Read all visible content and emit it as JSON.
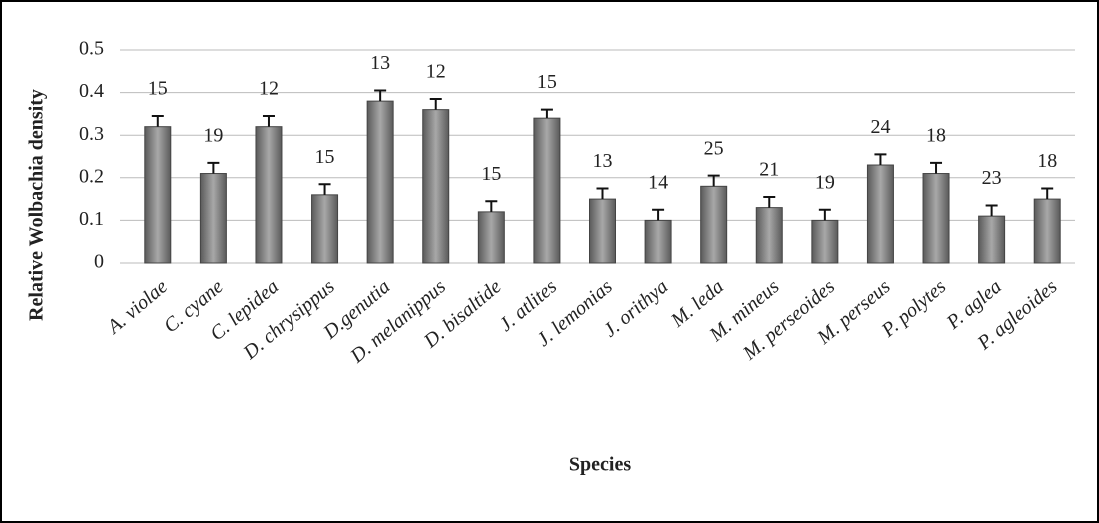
{
  "chart_data": {
    "type": "bar",
    "xlabel": "Species",
    "ylabel": "Relative Wolbachia density",
    "categories": [
      "A. violae",
      "C. cyane",
      "C. lepidea",
      "D. chrysippus",
      "D.genutia",
      "D. melanippus",
      "D. bisaltide",
      "J. atlites",
      "J. lemonias",
      "J. orithya",
      "M. leda",
      "M. mineus",
      "M. perseoides",
      "M. perseus",
      "P. polytes",
      "P. aglea",
      "P. agleoides"
    ],
    "values": [
      0.32,
      0.21,
      0.32,
      0.16,
      0.38,
      0.36,
      0.12,
      0.34,
      0.15,
      0.1,
      0.18,
      0.13,
      0.1,
      0.23,
      0.21,
      0.11,
      0.15
    ],
    "errors": [
      0.025,
      0.025,
      0.025,
      0.025,
      0.025,
      0.025,
      0.025,
      0.02,
      0.025,
      0.025,
      0.025,
      0.025,
      0.025,
      0.025,
      0.025,
      0.025,
      0.025
    ],
    "sample_sizes": [
      15,
      19,
      12,
      15,
      13,
      12,
      15,
      15,
      13,
      14,
      25,
      21,
      19,
      24,
      18,
      23,
      18
    ],
    "color": "#8a8a8a",
    "ylim": [
      0,
      0.5
    ],
    "yticks": [
      0,
      0.1,
      0.2,
      0.3,
      0.4,
      0.5
    ],
    "grid": true
  }
}
